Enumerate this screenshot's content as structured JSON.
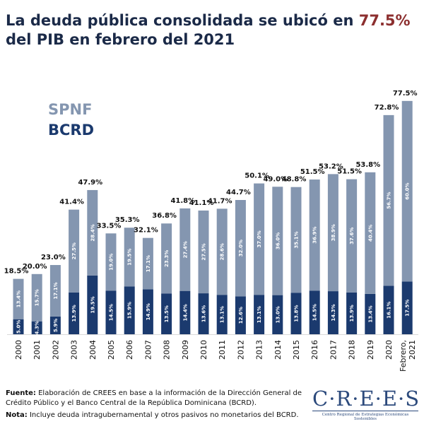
{
  "title": {
    "line1": "La deuda pública consolidada se ubicó en ",
    "highlight": "77.5%",
    "line2": "del PIB en febrero del 2021"
  },
  "colors": {
    "spnf": "#8496b0",
    "bcrd": "#1b3a6e",
    "title": "#1b2a48",
    "highlight": "#8c2f2f"
  },
  "chart_data": {
    "type": "bar",
    "stacked": true,
    "categories": [
      "2000",
      "2001",
      "2002",
      "2003",
      "2004",
      "2005",
      "2006",
      "2007",
      "2008",
      "2009",
      "2010",
      "2011",
      "2012",
      "2013",
      "2014",
      "2015",
      "2016",
      "2017",
      "2018",
      "2019",
      "2020",
      "Febrero, 2021"
    ],
    "series": [
      {
        "name": "BCRD",
        "values": [
          5.0,
          4.3,
          5.9,
          13.9,
          19.5,
          14.5,
          15.9,
          14.9,
          13.5,
          14.4,
          13.6,
          13.1,
          12.6,
          13.1,
          13.0,
          13.8,
          14.5,
          14.3,
          13.9,
          13.4,
          16.1,
          17.5
        ]
      },
      {
        "name": "SPNF",
        "values": [
          13.4,
          15.7,
          17.1,
          27.5,
          28.4,
          19.0,
          19.5,
          17.1,
          23.3,
          27.4,
          27.5,
          28.6,
          32.0,
          37.0,
          36.0,
          35.1,
          36.9,
          38.9,
          37.6,
          40.4,
          56.7,
          60.0
        ]
      }
    ],
    "totals": [
      18.5,
      20.0,
      23.0,
      41.4,
      47.9,
      33.5,
      35.3,
      32.1,
      36.8,
      41.8,
      41.1,
      41.7,
      44.7,
      50.1,
      49.0,
      48.8,
      51.5,
      53.2,
      51.5,
      53.8,
      72.8,
      77.5
    ],
    "legend": [
      "SPNF",
      "BCRD"
    ],
    "legend_position": "top-left",
    "ylim": [
      0,
      80
    ],
    "grid": false
  },
  "footer": {
    "fuente_label": "Fuente:",
    "fuente_text": " Elaboración de CREES en base a la información de la Dirección General de Crédito Público y el Banco Central de la República Dominicana (BCRD).",
    "nota_label": "Nota:",
    "nota_text": " Incluye deuda intragubernamental y otros pasivos no monetarios del BCRD."
  },
  "logo": {
    "name": "C·R·E·E·S",
    "subtitle": "Centro Regional de Estrategias Económicas Sostenibles"
  }
}
